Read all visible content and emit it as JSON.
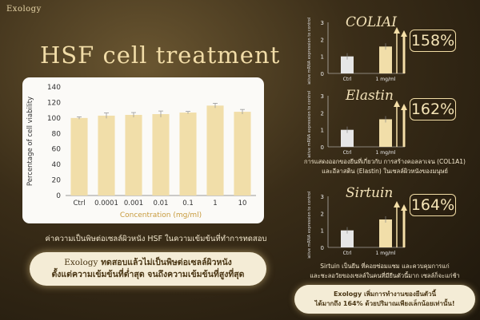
{
  "logo": "Exology",
  "title": "HSF cell treatment",
  "main_chart": {
    "type": "bar",
    "ylabel": "Percentage of cell viability",
    "xlabel": "Concentration (mg/ml)",
    "ylim": [
      0,
      140
    ],
    "yticks": [
      0,
      20,
      40,
      60,
      80,
      100,
      120,
      140
    ],
    "categories": [
      "Ctrl",
      "0.0001",
      "0.001",
      "0.01",
      "0.1",
      "1",
      "10"
    ],
    "values": [
      100,
      103,
      104,
      105,
      107,
      116,
      108
    ],
    "errors": [
      1.5,
      3.5,
      3,
      4,
      1.5,
      3,
      3
    ],
    "bar_color": "#f1dea9"
  },
  "note_main": "ค่าความเป็นพิษต่อเซลล์ผิวหนัง HSF ในความเข้มข้นที่ทำการทดสอบ",
  "callout_main": {
    "brand": "Exology",
    "line1": "ทดสอบแล้วไม่เป็นพิษต่อเซลล์ผิวหนัง",
    "line2": "ตั้งแต่ความเข้มข้นที่ต่ำสุด จนถึงความเข้มข้นที่สูงที่สุด"
  },
  "panels": [
    {
      "title": "COLIAI",
      "percent": "158%",
      "chart_data": {
        "type": "bar",
        "ylabel": "Relative mRNA expression to control (fold)",
        "ylim": [
          0,
          3
        ],
        "yticks": [
          0,
          1,
          2,
          3
        ],
        "categories": [
          "Ctrl",
          "1 mg/ml"
        ],
        "values": [
          1.0,
          1.58
        ]
      }
    },
    {
      "title": "Elastin",
      "percent": "162%",
      "chart_data": {
        "type": "bar",
        "ylabel": "Relative mRNA expression to control (fold)",
        "ylim": [
          0,
          3
        ],
        "yticks": [
          0,
          1,
          2,
          3
        ],
        "categories": [
          "Ctrl",
          "1 mg/ml"
        ],
        "values": [
          1.0,
          1.62
        ]
      }
    },
    {
      "title": "Sirtuin",
      "percent": "164%",
      "chart_data": {
        "type": "bar",
        "ylabel": "Relative mRNA expression to control (fold)",
        "ylim": [
          0,
          3
        ],
        "yticks": [
          0,
          1,
          2,
          3
        ],
        "categories": [
          "Ctrl",
          "1 mg/ml"
        ],
        "values": [
          1.0,
          1.64
        ]
      }
    }
  ],
  "desc_collagen": {
    "line1": "การแสดงออกของยีนที่เกี่ยวกับ การสร้างคอลลาเจน (COL1A1)",
    "line2": "และอีลาสติน (Elastin) ในเซลล์ผิวหนังของมนุษย์"
  },
  "desc_sirtuin": {
    "line1": "Sirtuin เป็นยีน ที่คอยซ่อมแซม และควบคุมการแก่",
    "line2": "และชะลอวัยของเซลล์ในคนที่มียีนตัวนี้มาก เซลล์ก็จะแก่ช้า"
  },
  "callout_side": {
    "line1": "Exology เพิ่มการทำงานของยีนตัวนี้",
    "line2": "ได้มากถึง 164% ด้วยปริมาณเพียงเล็กน้อยเท่านั้น!"
  },
  "colors": {
    "gold": "#f1dca7",
    "bar": "#f1dea9",
    "ctrl_bar": "#e6e6e6"
  }
}
